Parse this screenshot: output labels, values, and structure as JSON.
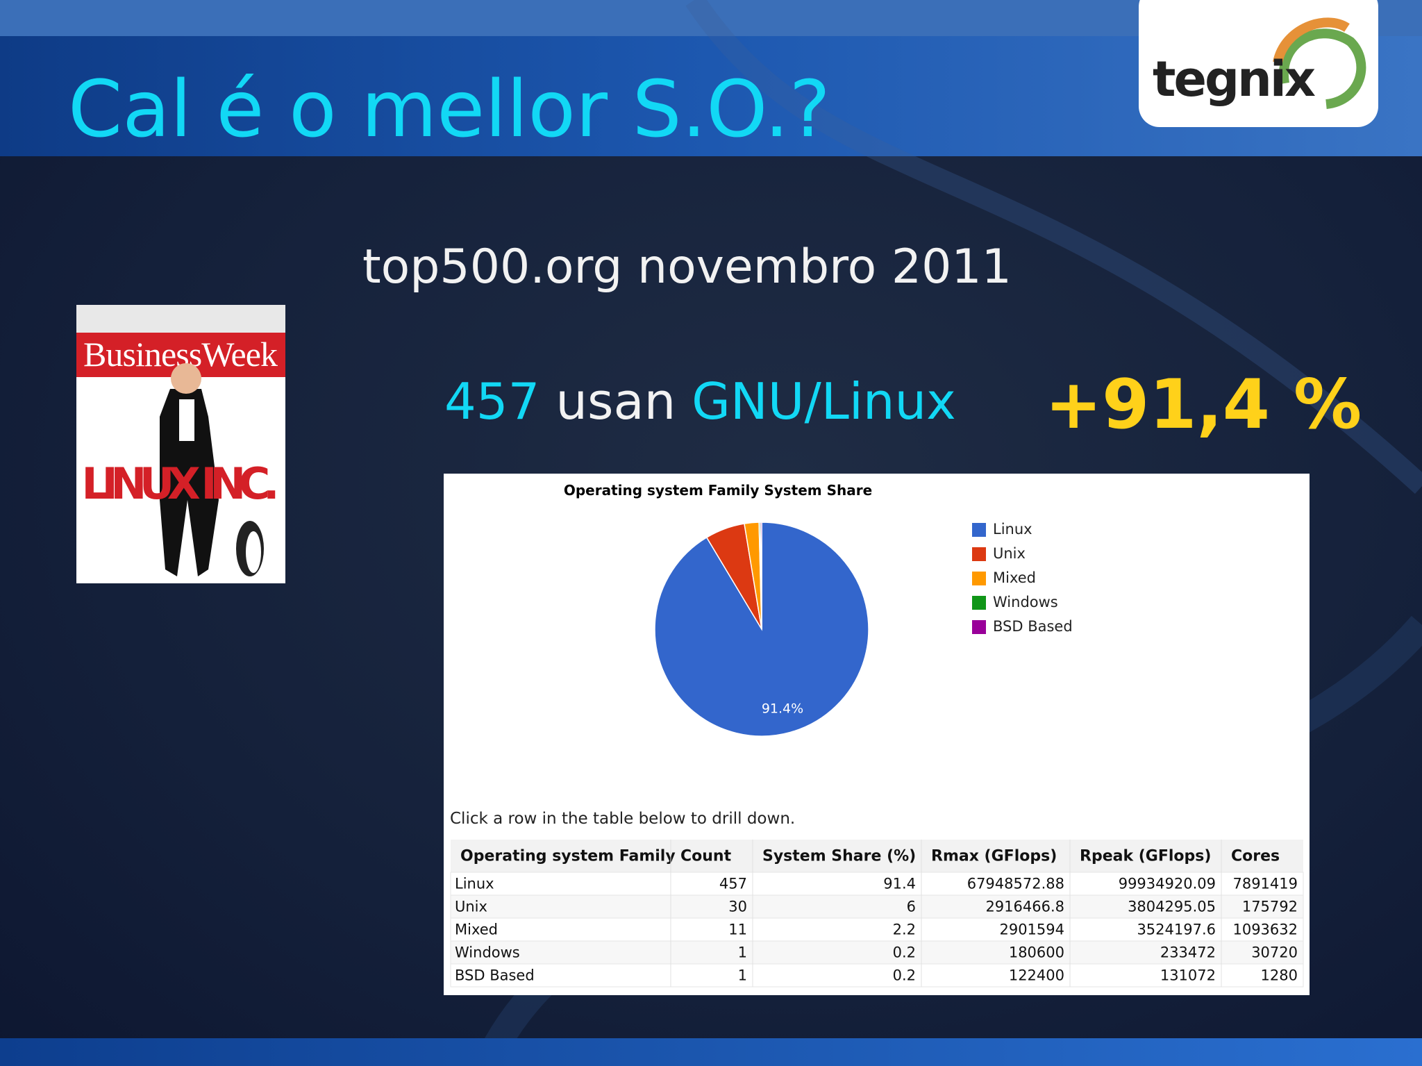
{
  "header": {
    "title": "Cal é o mellor S.O.?",
    "logo": "tegnix"
  },
  "subtitle": "top500.org novembro 2011",
  "headline": {
    "count": "457",
    "verb": "usan",
    "os": "GNU/Linux"
  },
  "stat": "+91,4 %",
  "cover": {
    "masthead": "BusinessWeek",
    "headline": "LINUX INC."
  },
  "chart_data": {
    "type": "pie",
    "title": "Operating system Family System Share",
    "categories": [
      "Linux",
      "Unix",
      "Mixed",
      "Windows",
      "BSD Based"
    ],
    "values": [
      91.4,
      6,
      2.2,
      0.2,
      0.2
    ],
    "value_labels": [
      "91.4%",
      null,
      null,
      null,
      null
    ],
    "colors": [
      "#3366cc",
      "#dc3912",
      "#ff9900",
      "#109618",
      "#990099"
    ],
    "legend": "right"
  },
  "note": "Click a row in the table below to drill down.",
  "table": {
    "header": [
      "Operating system Family",
      "Count",
      "System Share (%)",
      "Rmax (GFlops)",
      "Rpeak (GFlops)",
      "Cores"
    ],
    "rows": [
      [
        "Linux",
        457,
        91.4,
        67948572.88,
        99934920.09,
        7891419
      ],
      [
        "Unix",
        30,
        6,
        2916466.8,
        3804295.05,
        175792
      ],
      [
        "Mixed",
        11,
        2.2,
        2901594,
        3524197.6,
        1093632
      ],
      [
        "Windows",
        1,
        0.2,
        180600,
        233472,
        30720
      ],
      [
        "BSD Based",
        1,
        0.2,
        122400,
        131072,
        1280
      ]
    ]
  }
}
